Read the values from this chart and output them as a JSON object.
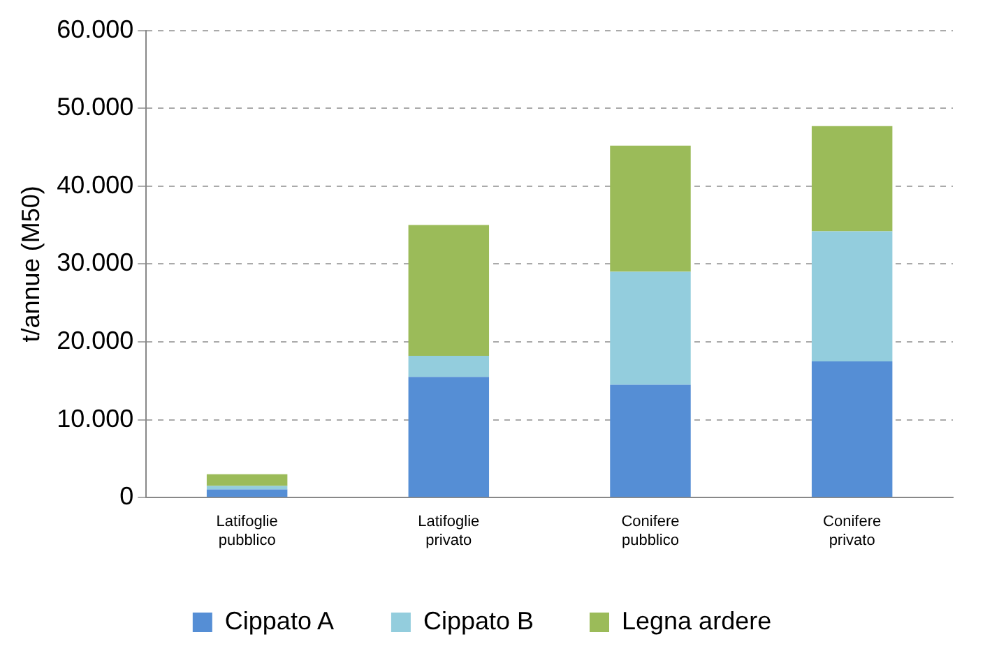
{
  "chart_data": {
    "type": "bar",
    "stacked": true,
    "ylabel": "t/annue (M50)",
    "categories": [
      "Latifoglie pubblico",
      "Latifoglie privato",
      "Conifere pubblico",
      "Conifere privato"
    ],
    "series": [
      {
        "name": "Cippato A",
        "color": "#558ed5",
        "values": [
          1050,
          15500,
          14500,
          17500
        ]
      },
      {
        "name": "Cippato B",
        "color": "#93cddd",
        "values": [
          450,
          2700,
          14500,
          16700
        ]
      },
      {
        "name": "Legna ardere",
        "color": "#9bbb59",
        "values": [
          1500,
          16800,
          16200,
          13500
        ]
      }
    ],
    "ylim": [
      0,
      60000
    ],
    "yticks": [
      {
        "value": 0,
        "label": "0"
      },
      {
        "value": 10000,
        "label": "10.000"
      },
      {
        "value": 20000,
        "label": "20.000"
      },
      {
        "value": 30000,
        "label": "30.000"
      },
      {
        "value": 40000,
        "label": "40.000"
      },
      {
        "value": 50000,
        "label": "50.000"
      },
      {
        "value": 60000,
        "label": "60.000"
      }
    ],
    "grid": "y",
    "legend": "bottom"
  }
}
